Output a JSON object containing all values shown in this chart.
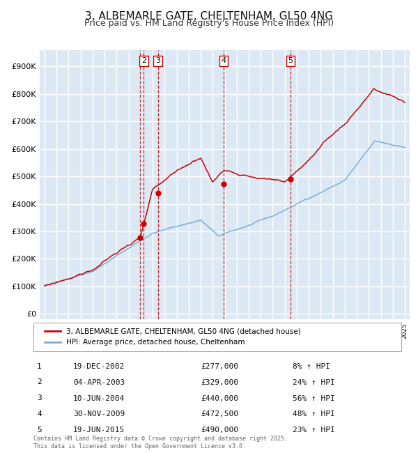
{
  "title": "3, ALBEMARLE GATE, CHELTENHAM, GL50 4NG",
  "subtitle": "Price paid vs. HM Land Registry's House Price Index (HPI)",
  "title_fontsize": 11,
  "subtitle_fontsize": 9,
  "bg_color": "#dce9f5",
  "grid_color": "#ffffff",
  "ytick_labels": [
    "£0",
    "£100K",
    "£200K",
    "£300K",
    "£400K",
    "£500K",
    "£600K",
    "£700K",
    "£800K",
    "£900K"
  ],
  "yticks": [
    0,
    100000,
    200000,
    300000,
    400000,
    500000,
    600000,
    700000,
    800000,
    900000
  ],
  "sale_dates": [
    2002.97,
    2003.27,
    2004.44,
    2009.92,
    2015.47
  ],
  "sale_prices": [
    277000,
    329000,
    440000,
    472500,
    490000
  ],
  "sale_labels": [
    "1",
    "2",
    "3",
    "4",
    "5"
  ],
  "sale_date_strs": [
    "19-DEC-2002",
    "04-APR-2003",
    "10-JUN-2004",
    "30-NOV-2009",
    "19-JUN-2015"
  ],
  "sale_price_strs": [
    "£277,000",
    "£329,000",
    "£440,000",
    "£472,500",
    "£490,000"
  ],
  "sale_hpi_strs": [
    "8% ↑ HPI",
    "24% ↑ HPI",
    "56% ↑ HPI",
    "48% ↑ HPI",
    "23% ↑ HPI"
  ],
  "red_line_color": "#cc0000",
  "blue_line_color": "#7aadd4",
  "dot_color": "#cc0000",
  "vline_color": "#cc0000",
  "legend_line1": "3, ALBEMARLE GATE, CHELTENHAM, GL50 4NG (detached house)",
  "legend_line2": "HPI: Average price, detached house, Cheltenham",
  "footer_text": "Contains HM Land Registry data © Crown copyright and database right 2025.\nThis data is licensed under the Open Government Licence v3.0."
}
